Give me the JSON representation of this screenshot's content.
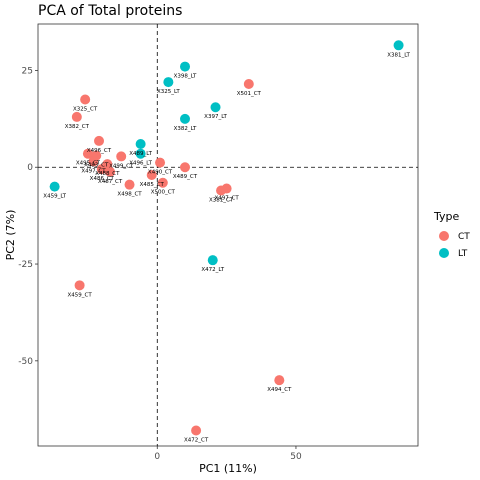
{
  "chart_data": {
    "type": "scatter",
    "title": "PCA of Total proteins",
    "xlabel": "PC1 (11%)",
    "ylabel": "PC2 (7%)",
    "xlim": [
      -43,
      94
    ],
    "ylim": [
      -72,
      37
    ],
    "x_ticks": [
      0,
      50
    ],
    "y_ticks": [
      25,
      0,
      -25,
      -50
    ],
    "x_tick_labels": [
      "0",
      "50"
    ],
    "y_tick_labels": [
      "25",
      "0",
      "-25",
      "-50"
    ],
    "reference_lines": {
      "x": 0,
      "y": 0,
      "style": "dashed"
    },
    "grid": false,
    "legend": {
      "title": "Type",
      "position": "right",
      "entries": [
        {
          "label": "CT",
          "color": "#F8766D"
        },
        {
          "label": "LT",
          "color": "#00BFC4"
        }
      ]
    },
    "series": [
      {
        "name": "CT",
        "color": "#F8766D",
        "points": [
          {
            "x": -26,
            "y": 17.5,
            "label": "X325_CT"
          },
          {
            "x": -29,
            "y": 13.0,
            "label": "X382_CT"
          },
          {
            "x": 33,
            "y": 21.5,
            "label": "X501_CT"
          },
          {
            "x": -21,
            "y": 6.8,
            "label": "X496_CT"
          },
          {
            "x": -25,
            "y": 3.5,
            "label": "X495_CT"
          },
          {
            "x": -22,
            "y": 3.0,
            "label": "X493_CT"
          },
          {
            "x": -13,
            "y": 2.8,
            "label": "X499_CT"
          },
          {
            "x": -23,
            "y": 1.5,
            "label": "X497_CT"
          },
          {
            "x": -18,
            "y": 0.8,
            "label": "X488_CT"
          },
          {
            "x": -20,
            "y": -0.5,
            "label": "X486_CT"
          },
          {
            "x": -17,
            "y": -1.2,
            "label": "X487_CT"
          },
          {
            "x": 1,
            "y": 1.2,
            "label": "X490_CT"
          },
          {
            "x": 10,
            "y": 0.0,
            "label": "X489_CT"
          },
          {
            "x": -2,
            "y": -2.0,
            "label": "X485_CT"
          },
          {
            "x": 2,
            "y": -4.0,
            "label": "X500_CT"
          },
          {
            "x": -10,
            "y": -4.5,
            "label": "X498_CT"
          },
          {
            "x": 25,
            "y": -5.5,
            "label": "X497_CT"
          },
          {
            "x": 23,
            "y": -6.0,
            "label": "X381_CT"
          },
          {
            "x": -28,
            "y": -30.5,
            "label": "X459_CT"
          },
          {
            "x": 44,
            "y": -55.0,
            "label": "X494_CT"
          },
          {
            "x": 14,
            "y": -68.0,
            "label": "X472_CT"
          }
        ]
      },
      {
        "name": "LT",
        "color": "#00BFC4",
        "points": [
          {
            "x": 87,
            "y": 31.5,
            "label": "X381_LT"
          },
          {
            "x": 10,
            "y": 26.0,
            "label": "X398_LT"
          },
          {
            "x": 4,
            "y": 22.0,
            "label": "X325_LT"
          },
          {
            "x": 21,
            "y": 15.5,
            "label": "X397_LT"
          },
          {
            "x": 10,
            "y": 12.5,
            "label": "X382_LT"
          },
          {
            "x": -6,
            "y": 6.0,
            "label": "X489_LT"
          },
          {
            "x": -6,
            "y": 3.5,
            "label": "X496_LT"
          },
          {
            "x": -37,
            "y": -5.0,
            "label": "X459_LT"
          },
          {
            "x": 20,
            "y": -24.0,
            "label": "X472_LT"
          }
        ]
      }
    ]
  }
}
